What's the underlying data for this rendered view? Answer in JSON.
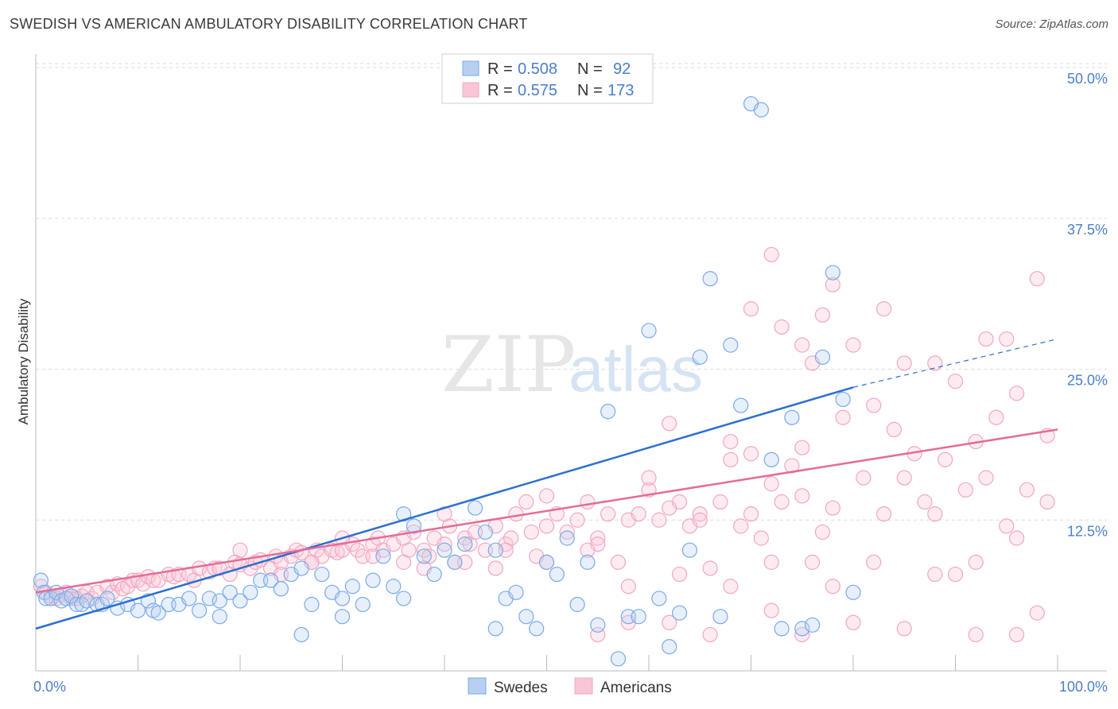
{
  "title": "SWEDISH VS AMERICAN AMBULATORY DISABILITY CORRELATION CHART",
  "source": "Source: ZipAtlas.com",
  "watermark": {
    "zip": "ZIP",
    "atlas": "atlas"
  },
  "chart_data": {
    "type": "scatter",
    "title": "SWEDISH VS AMERICAN AMBULATORY DISABILITY CORRELATION CHART",
    "ylabel": "Ambulatory Disability",
    "xlabel": "",
    "xlim": [
      0,
      100
    ],
    "ylim": [
      0,
      50
    ],
    "x_tick_labels": [
      "0.0%",
      "100.0%"
    ],
    "y_ticks": [
      12.5,
      25.0,
      37.5,
      50.0
    ],
    "y_tick_labels": [
      "12.5%",
      "25.0%",
      "37.5%",
      "50.0%"
    ],
    "grid": "horizontal dashed",
    "legend_position": "top-center",
    "colors": {
      "Swedes": "#7aaae8",
      "Americans": "#f2a7c0",
      "swedes_line": "#2b6fd1",
      "americans_line": "#e46c98"
    },
    "stats": [
      {
        "r_label": "R =",
        "r": "0.508",
        "n_label": "N =",
        "n": "92"
      },
      {
        "r_label": "R =",
        "r": "0.575",
        "n_label": "N =",
        "n": "173"
      }
    ],
    "series": [
      {
        "name": "Swedes",
        "trend": {
          "x": [
            0,
            80
          ],
          "y": [
            3.5,
            23.5
          ],
          "dash_to": [
            100,
            27.5
          ]
        },
        "points": [
          [
            0.5,
            7.5
          ],
          [
            0.8,
            6.5
          ],
          [
            1,
            6
          ],
          [
            1.5,
            6
          ],
          [
            2,
            6.5
          ],
          [
            2.5,
            5.8
          ],
          [
            3,
            6
          ],
          [
            3.5,
            6.2
          ],
          [
            4,
            5.5
          ],
          [
            4.5,
            5.5
          ],
          [
            5,
            5.8
          ],
          [
            6,
            5.5
          ],
          [
            6.5,
            5.5
          ],
          [
            7,
            6
          ],
          [
            8,
            5.2
          ],
          [
            9,
            5.5
          ],
          [
            10,
            5
          ],
          [
            11,
            5.8
          ],
          [
            11.5,
            5
          ],
          [
            12,
            4.8
          ],
          [
            13,
            5.5
          ],
          [
            14,
            5.5
          ],
          [
            15,
            6
          ],
          [
            16,
            5
          ],
          [
            17,
            6
          ],
          [
            18,
            5.8
          ],
          [
            19,
            6.5
          ],
          [
            20,
            5.8
          ],
          [
            21,
            6.5
          ],
          [
            22,
            7.5
          ],
          [
            23,
            7.5
          ],
          [
            24,
            6.8
          ],
          [
            25,
            8
          ],
          [
            26,
            8.5
          ],
          [
            27,
            5.5
          ],
          [
            28,
            8
          ],
          [
            29,
            6.5
          ],
          [
            30,
            6
          ],
          [
            31,
            7
          ],
          [
            32,
            5.5
          ],
          [
            33,
            7.5
          ],
          [
            34,
            9.5
          ],
          [
            35,
            7
          ],
          [
            36,
            13
          ],
          [
            37,
            12
          ],
          [
            38,
            9.5
          ],
          [
            39,
            8
          ],
          [
            40,
            10
          ],
          [
            41,
            9
          ],
          [
            42,
            10.5
          ],
          [
            43,
            13.5
          ],
          [
            44,
            11.5
          ],
          [
            45,
            10
          ],
          [
            46,
            6
          ],
          [
            47,
            6.5
          ],
          [
            48,
            4.5
          ],
          [
            49,
            3.5
          ],
          [
            50,
            9
          ],
          [
            51,
            8
          ],
          [
            52,
            11
          ],
          [
            53,
            5.5
          ],
          [
            54,
            9
          ],
          [
            55,
            3.8
          ],
          [
            56,
            21.5
          ],
          [
            57,
            1
          ],
          [
            58,
            4.5
          ],
          [
            59,
            4.5
          ],
          [
            60,
            28.2
          ],
          [
            61,
            6
          ],
          [
            62,
            2
          ],
          [
            63,
            4.8
          ],
          [
            64,
            10
          ],
          [
            65,
            26
          ],
          [
            66,
            32.5
          ],
          [
            67,
            4.5
          ],
          [
            68,
            27
          ],
          [
            69,
            22
          ],
          [
            70,
            47
          ],
          [
            71,
            46.5
          ],
          [
            72,
            17.5
          ],
          [
            73,
            3.5
          ],
          [
            74,
            21
          ],
          [
            75,
            3.5
          ],
          [
            76,
            3.8
          ],
          [
            77,
            26
          ],
          [
            78,
            33
          ],
          [
            79,
            22.5
          ],
          [
            80,
            6.5
          ],
          [
            18,
            4.5
          ],
          [
            26,
            3
          ],
          [
            30,
            4.5
          ],
          [
            36,
            6
          ],
          [
            45,
            3.5
          ]
        ]
      },
      {
        "name": "Americans",
        "trend": {
          "x": [
            0,
            100
          ],
          "y": [
            6.5,
            20
          ]
        },
        "points": [
          [
            0.5,
            7
          ],
          [
            1,
            6.5
          ],
          [
            1.5,
            6.2
          ],
          [
            2,
            6
          ],
          [
            2.5,
            6.3
          ],
          [
            3,
            6.5
          ],
          [
            3.5,
            6
          ],
          [
            4,
            6
          ],
          [
            4.5,
            6.2
          ],
          [
            5,
            6.5
          ],
          [
            5.5,
            6
          ],
          [
            6,
            6.5
          ],
          [
            7,
            7
          ],
          [
            7.5,
            6.5
          ],
          [
            8,
            7.2
          ],
          [
            8.5,
            6.8
          ],
          [
            9,
            7
          ],
          [
            9.5,
            7.5
          ],
          [
            10,
            7.5
          ],
          [
            10.5,
            7.2
          ],
          [
            11,
            7.8
          ],
          [
            11.5,
            7.5
          ],
          [
            12,
            7.5
          ],
          [
            13,
            8
          ],
          [
            13.5,
            7.8
          ],
          [
            14,
            8
          ],
          [
            15,
            8
          ],
          [
            15.5,
            7.5
          ],
          [
            16,
            8.5
          ],
          [
            17,
            8.2
          ],
          [
            17.5,
            8.5
          ],
          [
            18,
            8.5
          ],
          [
            19,
            8
          ],
          [
            19.5,
            9
          ],
          [
            20,
            8.8
          ],
          [
            21,
            8.5
          ],
          [
            21.5,
            9
          ],
          [
            22,
            9.2
          ],
          [
            23,
            8.5
          ],
          [
            23.5,
            9.5
          ],
          [
            24,
            9
          ],
          [
            25,
            9.5
          ],
          [
            25.5,
            10
          ],
          [
            26,
            9.8
          ],
          [
            27,
            9
          ],
          [
            27.5,
            10
          ],
          [
            28,
            9.5
          ],
          [
            29,
            10
          ],
          [
            29.5,
            9.8
          ],
          [
            30,
            10
          ],
          [
            31,
            10.5
          ],
          [
            31.5,
            10
          ],
          [
            32,
            9.5
          ],
          [
            33,
            10.5
          ],
          [
            33.5,
            11
          ],
          [
            34,
            10
          ],
          [
            35,
            10.5
          ],
          [
            36,
            11
          ],
          [
            36.5,
            10
          ],
          [
            37,
            11.5
          ],
          [
            38,
            10
          ],
          [
            38.5,
            9.5
          ],
          [
            39,
            11
          ],
          [
            40,
            10.5
          ],
          [
            40.5,
            12
          ],
          [
            41,
            9
          ],
          [
            42,
            11
          ],
          [
            42.5,
            10.5
          ],
          [
            43,
            11.5
          ],
          [
            44,
            10
          ],
          [
            45,
            12
          ],
          [
            46,
            10.5
          ],
          [
            46.5,
            11
          ],
          [
            47,
            13
          ],
          [
            48,
            14
          ],
          [
            48.5,
            11.5
          ],
          [
            49,
            9.5
          ],
          [
            50,
            12
          ],
          [
            51,
            13
          ],
          [
            52,
            11.5
          ],
          [
            53,
            12.5
          ],
          [
            54,
            14
          ],
          [
            55,
            11
          ],
          [
            56,
            13
          ],
          [
            57,
            9
          ],
          [
            58,
            12.5
          ],
          [
            59,
            13
          ],
          [
            60,
            15
          ],
          [
            61,
            12.5
          ],
          [
            62,
            13.5
          ],
          [
            63,
            14
          ],
          [
            64,
            12
          ],
          [
            65,
            13
          ],
          [
            66,
            8.5
          ],
          [
            67,
            14
          ],
          [
            68,
            17.5
          ],
          [
            69,
            12
          ],
          [
            70,
            13
          ],
          [
            71,
            11
          ],
          [
            72,
            15.5
          ],
          [
            73,
            14
          ],
          [
            74,
            17
          ],
          [
            75,
            18.5
          ],
          [
            76,
            9
          ],
          [
            77,
            11.5
          ],
          [
            78,
            13.5
          ],
          [
            79,
            21
          ],
          [
            80,
            4
          ],
          [
            81,
            16
          ],
          [
            82,
            22
          ],
          [
            83,
            13
          ],
          [
            84,
            20
          ],
          [
            85,
            16
          ],
          [
            86,
            18
          ],
          [
            87,
            14
          ],
          [
            88,
            13
          ],
          [
            89,
            17.5
          ],
          [
            90,
            8
          ],
          [
            91,
            15
          ],
          [
            92,
            19
          ],
          [
            93,
            16
          ],
          [
            94,
            21
          ],
          [
            95,
            12
          ],
          [
            96,
            23
          ],
          [
            97,
            15
          ],
          [
            98,
            4.8
          ],
          [
            99,
            19.5
          ],
          [
            20,
            10
          ],
          [
            30,
            11
          ],
          [
            40,
            13
          ],
          [
            50,
            14.5
          ],
          [
            60,
            16
          ],
          [
            70,
            18
          ],
          [
            45,
            8.5
          ],
          [
            55,
            10.5
          ],
          [
            65,
            12.5
          ],
          [
            75,
            14.5
          ],
          [
            62,
            20.5
          ],
          [
            68,
            19
          ],
          [
            70,
            30
          ],
          [
            72,
            34.5
          ],
          [
            73,
            28.5
          ],
          [
            75,
            27
          ],
          [
            76,
            25.5
          ],
          [
            77,
            29.5
          ],
          [
            78,
            32
          ],
          [
            80,
            27
          ],
          [
            83,
            30
          ],
          [
            85,
            25.5
          ],
          [
            88,
            25.5
          ],
          [
            90,
            24
          ],
          [
            93,
            27.5
          ],
          [
            95,
            27.5
          ],
          [
            98,
            32.5
          ],
          [
            55,
            3
          ],
          [
            58,
            4
          ],
          [
            62,
            4
          ],
          [
            66,
            3
          ],
          [
            72,
            5
          ],
          [
            75,
            3
          ],
          [
            85,
            3.5
          ],
          [
            92,
            3
          ],
          [
            96,
            3
          ],
          [
            58,
            7
          ],
          [
            63,
            8
          ],
          [
            68,
            7
          ],
          [
            72,
            9
          ],
          [
            78,
            7
          ],
          [
            82,
            9
          ],
          [
            88,
            8
          ],
          [
            92,
            9
          ],
          [
            96,
            11
          ],
          [
            99,
            14
          ],
          [
            38,
            8.5
          ],
          [
            42,
            9
          ],
          [
            46,
            10
          ],
          [
            50,
            9
          ],
          [
            54,
            10
          ],
          [
            27,
            9
          ],
          [
            33,
            9.5
          ],
          [
            36,
            9
          ],
          [
            24,
            8
          ]
        ]
      }
    ]
  },
  "legend_bottom": [
    "Swedes",
    "Americans"
  ]
}
